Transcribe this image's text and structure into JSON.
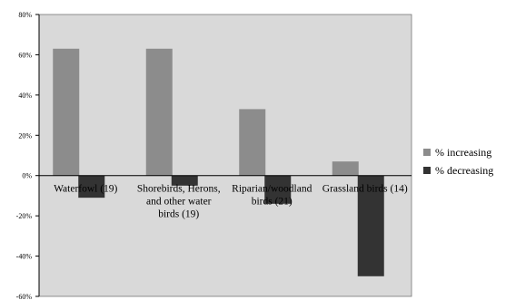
{
  "chart_data": {
    "type": "bar",
    "categories": [
      [
        "Waterfowl (19)"
      ],
      [
        "Shorebirds, Herons,",
        "and other water",
        "birds (19)"
      ],
      [
        "Riparian/woodland",
        "birds (21)"
      ],
      [
        "Grassland birds (14)"
      ]
    ],
    "series": [
      {
        "name": "% increasing",
        "values": [
          63,
          63,
          33,
          7
        ],
        "color": "#8c8c8c"
      },
      {
        "name": "% decreasing",
        "values": [
          -11,
          -5,
          -14,
          -50
        ],
        "color": "#333333"
      }
    ],
    "ylim": [
      -60,
      80
    ],
    "yticks": [
      "80%",
      "60%",
      "40%",
      "20%",
      "0%",
      "-20%",
      "-40%",
      "-60%"
    ],
    "ytick_values": [
      80,
      60,
      40,
      20,
      0,
      -20,
      -40,
      -60
    ],
    "plot_background": "#d9d9d9",
    "grid": false,
    "legend_position": "right"
  }
}
